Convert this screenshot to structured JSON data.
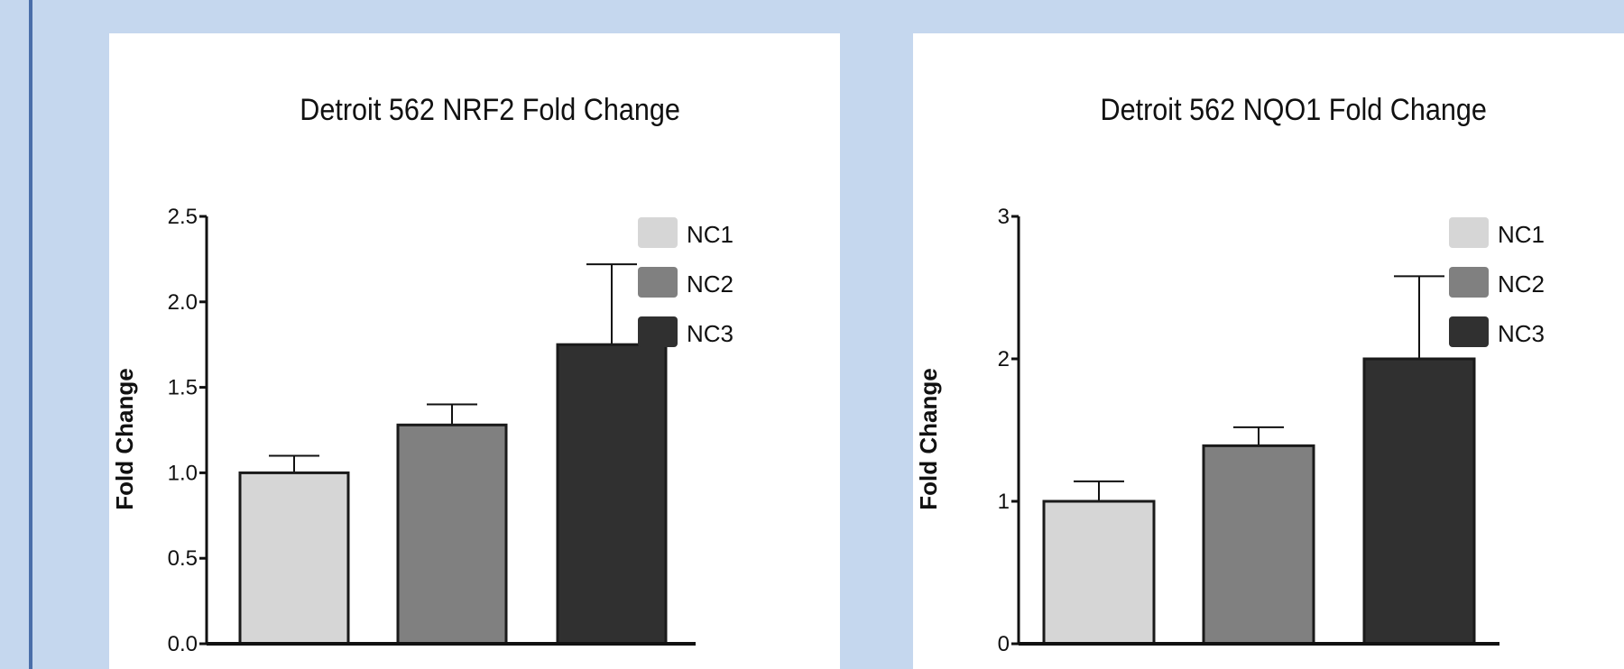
{
  "charts": [
    {
      "chart_data": {
        "type": "bar",
        "title": "Detroit 562 NRF2 Fold Change",
        "xlabel": "",
        "ylabel": "Fold Change",
        "categories": [
          "NC1",
          "NC2",
          "NC3"
        ],
        "values": [
          1.0,
          1.28,
          1.75
        ],
        "error": [
          0.1,
          0.12,
          0.47
        ],
        "ylim": [
          0,
          2.5
        ],
        "yticks": [
          "0.0",
          "0.5",
          "1.0",
          "1.5",
          "2.0",
          "2.5"
        ],
        "ytick_values": [
          0,
          0.5,
          1.0,
          1.5,
          2.0,
          2.5
        ],
        "legend": [
          "NC1",
          "NC2",
          "NC3"
        ],
        "legend_position": "right",
        "colors": [
          "#d6d6d6",
          "#808080",
          "#303030"
        ],
        "grid": false
      }
    },
    {
      "chart_data": {
        "type": "bar",
        "title": "Detroit 562 NQO1 Fold Change",
        "xlabel": "",
        "ylabel": "Fold Change",
        "categories": [
          "NC1",
          "NC2",
          "NC3"
        ],
        "values": [
          1.0,
          1.39,
          2.0
        ],
        "error": [
          0.14,
          0.13,
          0.58
        ],
        "ylim": [
          0,
          3
        ],
        "yticks": [
          "0",
          "1",
          "2",
          "3"
        ],
        "ytick_values": [
          0,
          1,
          2,
          3
        ],
        "legend": [
          "NC1",
          "NC2",
          "NC3"
        ],
        "legend_position": "right",
        "colors": [
          "#d6d6d6",
          "#808080",
          "#303030"
        ],
        "grid": false
      }
    }
  ]
}
